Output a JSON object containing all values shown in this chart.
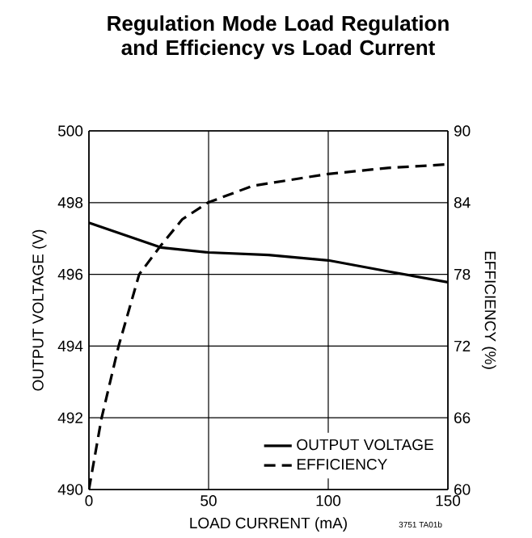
{
  "chart_data": {
    "type": "line",
    "title": "Regulation Mode Load Regulation and Efficiency vs Load Current",
    "xlabel": "LOAD CURRENT (mA)",
    "ylabel": "OUTPUT VOLTAGE (V)",
    "y2label": "EFFICIENCY (%)",
    "xlim": [
      0,
      150
    ],
    "xticks": [
      0,
      50,
      100,
      150
    ],
    "ylim": [
      490,
      500
    ],
    "yticks": [
      490,
      492,
      494,
      496,
      498,
      500
    ],
    "y2lim": [
      60,
      90
    ],
    "y2ticks": [
      60,
      66,
      72,
      78,
      84,
      90
    ],
    "grid": true,
    "legend": "bottom right",
    "annotations": [
      "3751 TA01b"
    ],
    "series": [
      {
        "name": "OUTPUT VOLTAGE",
        "color": "#000000",
        "line_style": "solid",
        "x": [
          0,
          30,
          50,
          75,
          100,
          125,
          150
        ],
        "values": [
          497.44,
          496.75,
          496.61,
          496.54,
          496.39,
          496.08,
          495.78
        ]
      },
      {
        "name": "EFFICIENCY",
        "color": "#000000",
        "line_style": "dashed",
        "axis": "y2",
        "x": [
          0,
          5.2,
          12.4,
          21,
          30,
          39,
          49.7,
          68.4,
          100,
          125,
          150
        ],
        "values": [
          60,
          65.9,
          72,
          78,
          80.4,
          82.6,
          84,
          85.4,
          86.4,
          86.9,
          87.2
        ]
      }
    ]
  }
}
